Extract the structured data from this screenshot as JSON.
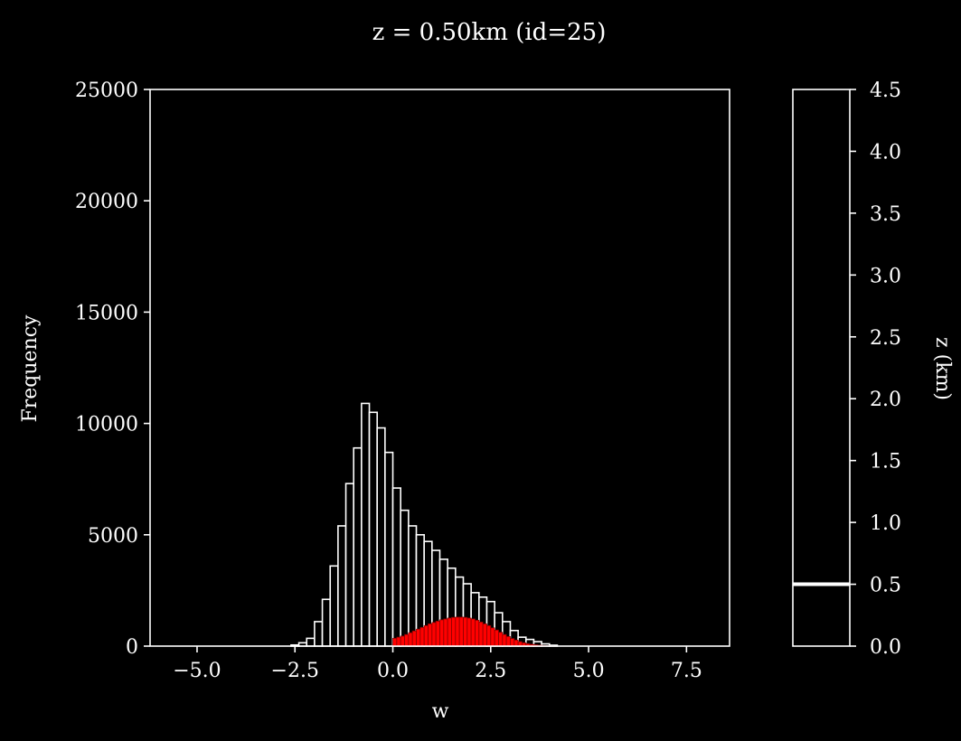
{
  "title": "z = 0.50km (id=25)",
  "colors": {
    "background": "#000000",
    "foreground": "#ffffff",
    "highlight": "#ff0000"
  },
  "chart_data": [
    {
      "type": "bar",
      "subtype": "histogram",
      "xlabel": "w",
      "ylabel": "Frequency",
      "xlim": [
        -6.2,
        8.6
      ],
      "ylim": [
        0,
        25000
      ],
      "xticks": [
        "−5.0",
        "−2.5",
        "0.0",
        "2.5",
        "5.0",
        "7.5"
      ],
      "yticks": [
        "0",
        "5000",
        "10000",
        "15000",
        "20000",
        "25000"
      ],
      "grid": false,
      "bin_width": 0.2,
      "series": [
        {
          "style": "white-outline",
          "bin_starts": [
            -2.6,
            -2.4,
            -2.2,
            -2.0,
            -1.8,
            -1.6,
            -1.4,
            -1.2,
            -1.0,
            -0.8,
            -0.6,
            -0.4,
            -0.2,
            0.0,
            0.2,
            0.4,
            0.6,
            0.8,
            1.0,
            1.2,
            1.4,
            1.6,
            1.8,
            2.0,
            2.2,
            2.4,
            2.6,
            2.8,
            3.0,
            3.2,
            3.4,
            3.6,
            3.8,
            4.0
          ],
          "values": [
            50,
            150,
            350,
            1100,
            2100,
            3600,
            5400,
            7300,
            8900,
            10900,
            10500,
            9800,
            8700,
            7100,
            6100,
            5400,
            5000,
            4700,
            4300,
            3900,
            3500,
            3100,
            2800,
            2400,
            2200,
            2000,
            1500,
            1100,
            700,
            400,
            300,
            200,
            100,
            40
          ]
        },
        {
          "style": "red-fill",
          "bin_starts": [
            0.0,
            0.1,
            0.2,
            0.3,
            0.4,
            0.5,
            0.6,
            0.7,
            0.8,
            0.9,
            1.0,
            1.1,
            1.2,
            1.3,
            1.4,
            1.5,
            1.6,
            1.7,
            1.8,
            1.9,
            2.0,
            2.1,
            2.2,
            2.3,
            2.4,
            2.5,
            2.6,
            2.7,
            2.8,
            2.9,
            3.0,
            3.1,
            3.2,
            3.3,
            3.4,
            3.5,
            3.6,
            3.7,
            3.8,
            3.9,
            4.0
          ],
          "bin_width": 0.1,
          "values": [
            350,
            400,
            450,
            520,
            600,
            680,
            760,
            840,
            920,
            1000,
            1060,
            1120,
            1180,
            1220,
            1260,
            1290,
            1300,
            1300,
            1290,
            1260,
            1220,
            1160,
            1080,
            1000,
            920,
            820,
            720,
            620,
            520,
            430,
            340,
            270,
            200,
            150,
            110,
            80,
            60,
            40,
            25,
            15,
            8
          ]
        }
      ]
    },
    {
      "type": "colorbar",
      "ylabel": "z (km)",
      "ylim": [
        0.0,
        4.5
      ],
      "yticks": [
        "0.0",
        "0.5",
        "1.0",
        "1.5",
        "2.0",
        "2.5",
        "3.0",
        "3.5",
        "4.0",
        "4.5"
      ],
      "marker_value": 0.5
    }
  ]
}
